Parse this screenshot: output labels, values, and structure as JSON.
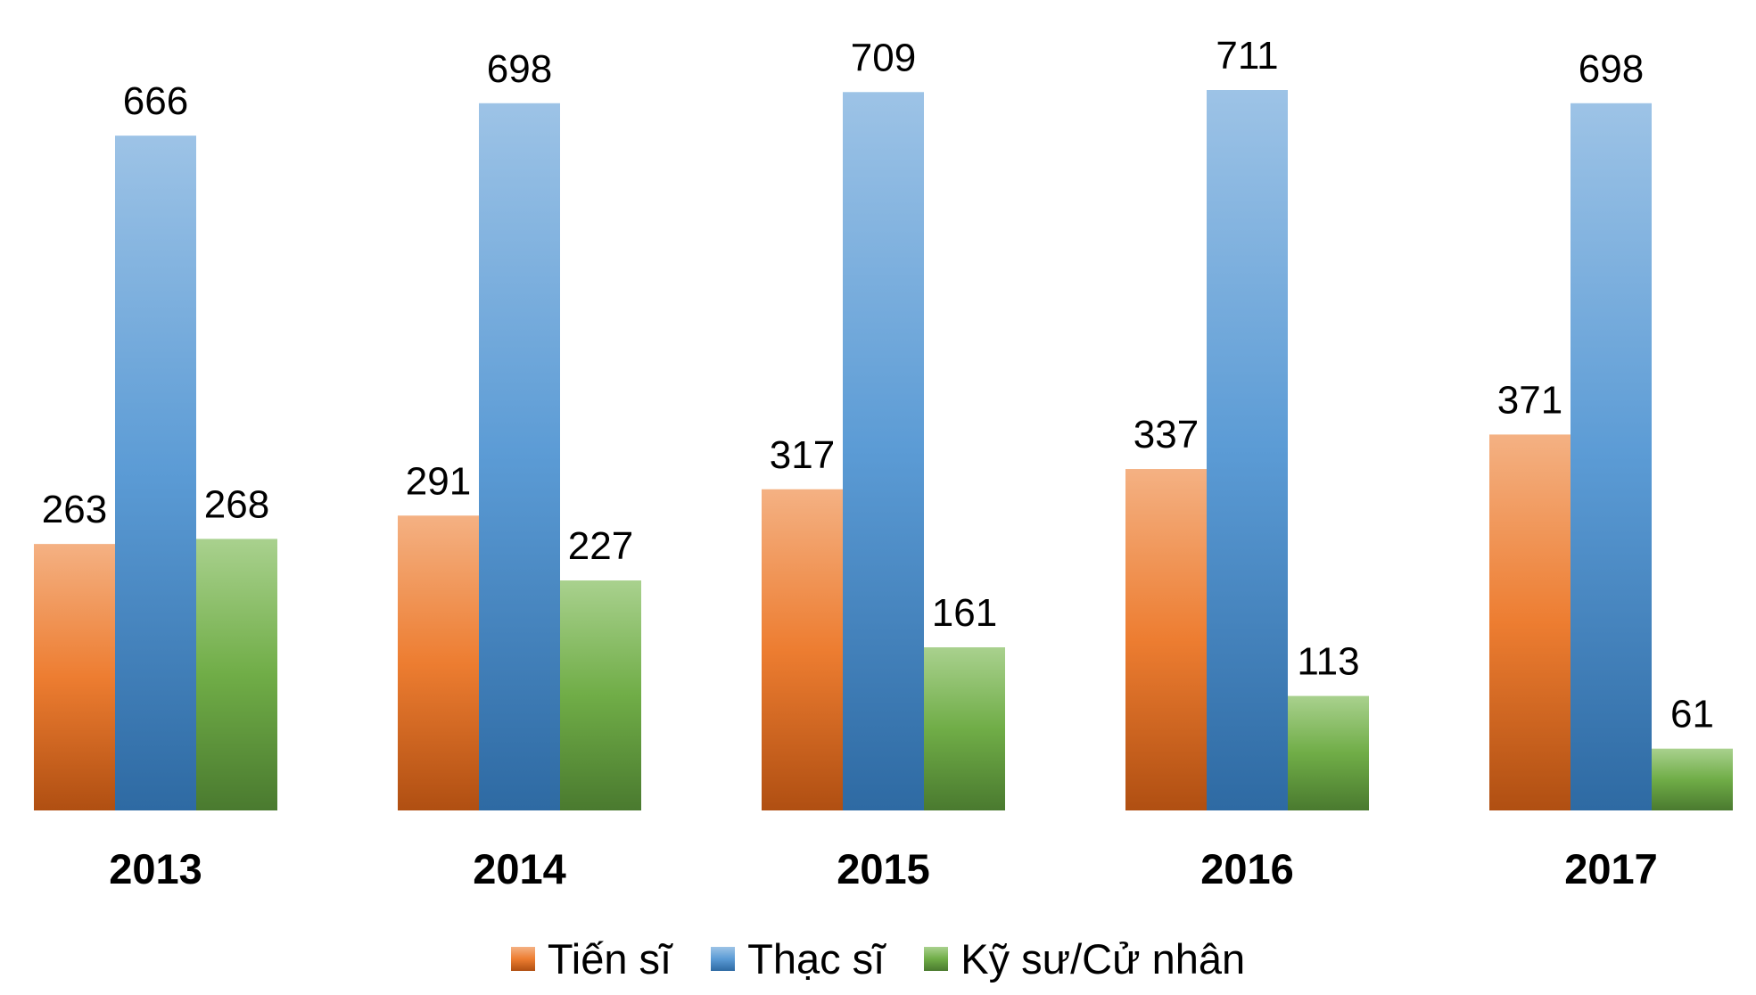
{
  "chart_data": {
    "type": "bar",
    "title": "",
    "xlabel": "",
    "ylabel": "",
    "categories": [
      "2013",
      "2014",
      "2015",
      "2016",
      "2017"
    ],
    "series": [
      {
        "name": "Tiến sĩ",
        "values": [
          263,
          291,
          317,
          337,
          371
        ],
        "colors": [
          "#f4b183",
          "#ed7d31",
          "#b04f12"
        ]
      },
      {
        "name": "Thạc sĩ",
        "values": [
          666,
          698,
          709,
          711,
          698
        ],
        "colors": [
          "#9dc3e6",
          "#5b9bd5",
          "#2e6aa3"
        ]
      },
      {
        "name": "Kỹ sư/Cử nhân",
        "values": [
          268,
          227,
          161,
          113,
          61
        ],
        "colors": [
          "#a9d18e",
          "#70ad47",
          "#4a7a2f"
        ]
      }
    ],
    "ylim": [
      0,
      711
    ],
    "grid": false,
    "legend_position": "bottom"
  }
}
